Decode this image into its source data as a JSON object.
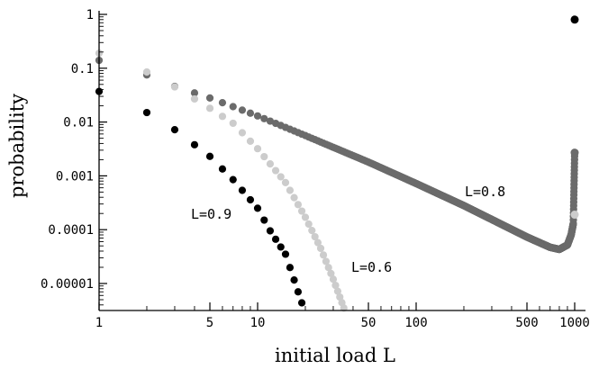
{
  "chart_data": {
    "type": "scatter",
    "title": "",
    "xlabel": "initial load L",
    "ylabel": "probability",
    "x_scale": "log",
    "y_scale": "log",
    "xlim": [
      1,
      1000
    ],
    "ylim": [
      1e-06,
      1
    ],
    "grid": false,
    "x_ticks": [
      {
        "value": 1,
        "label": "1"
      },
      {
        "value": 5,
        "label": "5"
      },
      {
        "value": 10,
        "label": "10"
      },
      {
        "value": 50,
        "label": "50"
      },
      {
        "value": 100,
        "label": "100"
      },
      {
        "value": 500,
        "label": "500"
      },
      {
        "value": 1000,
        "label": "1000"
      }
    ],
    "y_ticks": [
      {
        "value": 1,
        "label": "1"
      },
      {
        "value": 0.1,
        "label": "0.1"
      },
      {
        "value": 0.01,
        "label": "0.01"
      },
      {
        "value": 0.001,
        "label": "0.001"
      },
      {
        "value": 0.0001,
        "label": "0.0001"
      },
      {
        "value": 1e-05,
        "label": "0.00001"
      }
    ],
    "series": [
      {
        "label_text": "L=0.8",
        "color": "#6b6b6b",
        "x_range": [
          1,
          1000
        ],
        "points": [
          [
            1,
            0.14
          ],
          [
            2,
            0.075
          ],
          [
            3,
            0.046
          ],
          [
            5,
            0.028
          ],
          [
            10,
            0.013
          ],
          [
            20,
            0.0056
          ],
          [
            50,
            0.0018
          ],
          [
            100,
            0.00072
          ],
          [
            200,
            0.00028
          ],
          [
            500,
            7.3e-05
          ],
          [
            700,
            4.7e-05
          ],
          [
            800,
            4.3e-05
          ],
          [
            900,
            5.2e-05
          ],
          [
            950,
            8e-05
          ],
          [
            980,
            0.00013
          ],
          [
            1000,
            0.0027
          ]
        ]
      },
      {
        "label_text": "L=0.6",
        "color": "#cccccc",
        "x_range": [
          1,
          40
        ],
        "points": [
          [
            1,
            0.19
          ],
          [
            2,
            0.085
          ],
          [
            3,
            0.045
          ],
          [
            5,
            0.018
          ],
          [
            7,
            0.0095
          ],
          [
            10,
            0.0032
          ],
          [
            15,
            0.00075
          ],
          [
            20,
            0.00017
          ],
          [
            25,
            4.5e-05
          ],
          [
            30,
            1.2e-05
          ],
          [
            35,
            3.5e-06
          ],
          [
            40,
            1.1e-06
          ]
        ]
      },
      {
        "label_text": "L=0.9",
        "color": "#000000",
        "x_range": [
          1,
          22
        ],
        "points": [
          [
            1,
            0.037
          ],
          [
            2,
            0.015
          ],
          [
            3,
            0.0072
          ],
          [
            5,
            0.0023
          ],
          [
            7,
            0.00085
          ],
          [
            10,
            0.00025
          ],
          [
            12,
            9.5e-05
          ],
          [
            15,
            3.5e-05
          ],
          [
            18,
            7e-06
          ],
          [
            20,
            2.8e-06
          ],
          [
            22,
            1.1e-06
          ]
        ]
      }
    ],
    "endpoint_points": [
      {
        "x": 1000,
        "y": 0.8,
        "color": "#000000"
      },
      {
        "x": 1000,
        "y": 0.0027,
        "color": "#6b6b6b"
      },
      {
        "x": 1000,
        "y": 0.00019,
        "color": "#cccccc"
      }
    ]
  }
}
